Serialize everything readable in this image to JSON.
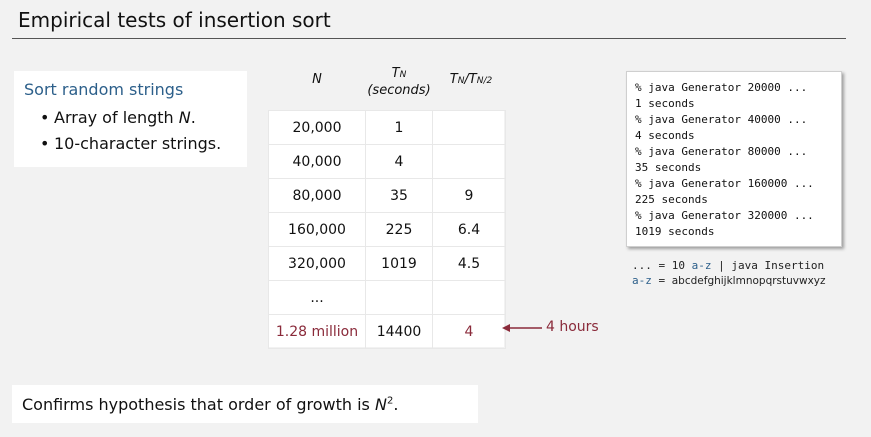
{
  "title": "Empirical tests of insertion sort",
  "sort_box": {
    "heading": "Sort random strings",
    "item1_prefix": "Array of length ",
    "item1_var": "N",
    "item1_suffix": ".",
    "item2": "10-character strings."
  },
  "table": {
    "headers": {
      "col1": "N",
      "col2_main": "T",
      "col2_sub": "N",
      "col2_paren": "(seconds)",
      "col3_main": "T",
      "col3_sub1": "N",
      "col3_slash": "/T",
      "col3_sub2": "N/2"
    },
    "rows": [
      {
        "n": "20,000",
        "t": "1",
        "ratio": ""
      },
      {
        "n": "40,000",
        "t": "4",
        "ratio": ""
      },
      {
        "n": "80,000",
        "t": "35",
        "ratio": "9"
      },
      {
        "n": "160,000",
        "t": "225",
        "ratio": "6.4"
      },
      {
        "n": "320,000",
        "t": "1019",
        "ratio": "4.5"
      },
      {
        "n": "...",
        "t": "",
        "ratio": ""
      },
      {
        "n": "1.28 million",
        "t": "14400",
        "ratio": "4"
      }
    ],
    "annotation": "4 hours"
  },
  "terminal": {
    "lines": [
      "% java Generator 20000 ...",
      "1 seconds",
      "% java Generator 40000 ...",
      "4 seconds",
      "% java Generator 80000 ...",
      "35 seconds",
      "% java Generator 160000 ...",
      "225 seconds",
      "% java Generator 320000 ...",
      "1019 seconds"
    ]
  },
  "legend": {
    "line1_a": "... = 10 ",
    "line1_b": "a-z",
    "line1_c": " | java Insertion",
    "line2_a": "a-z",
    "line2_b": " = ",
    "line2_c": "abcdefghijklmnopqrstuvwxyz"
  },
  "confirm": {
    "text": "Confirms hypothesis that order of growth is ",
    "var": "N",
    "exp": "2",
    "end": "."
  },
  "colors": {
    "accent_blue": "#2c5f8a",
    "highlight_red": "#8a2a3a"
  }
}
